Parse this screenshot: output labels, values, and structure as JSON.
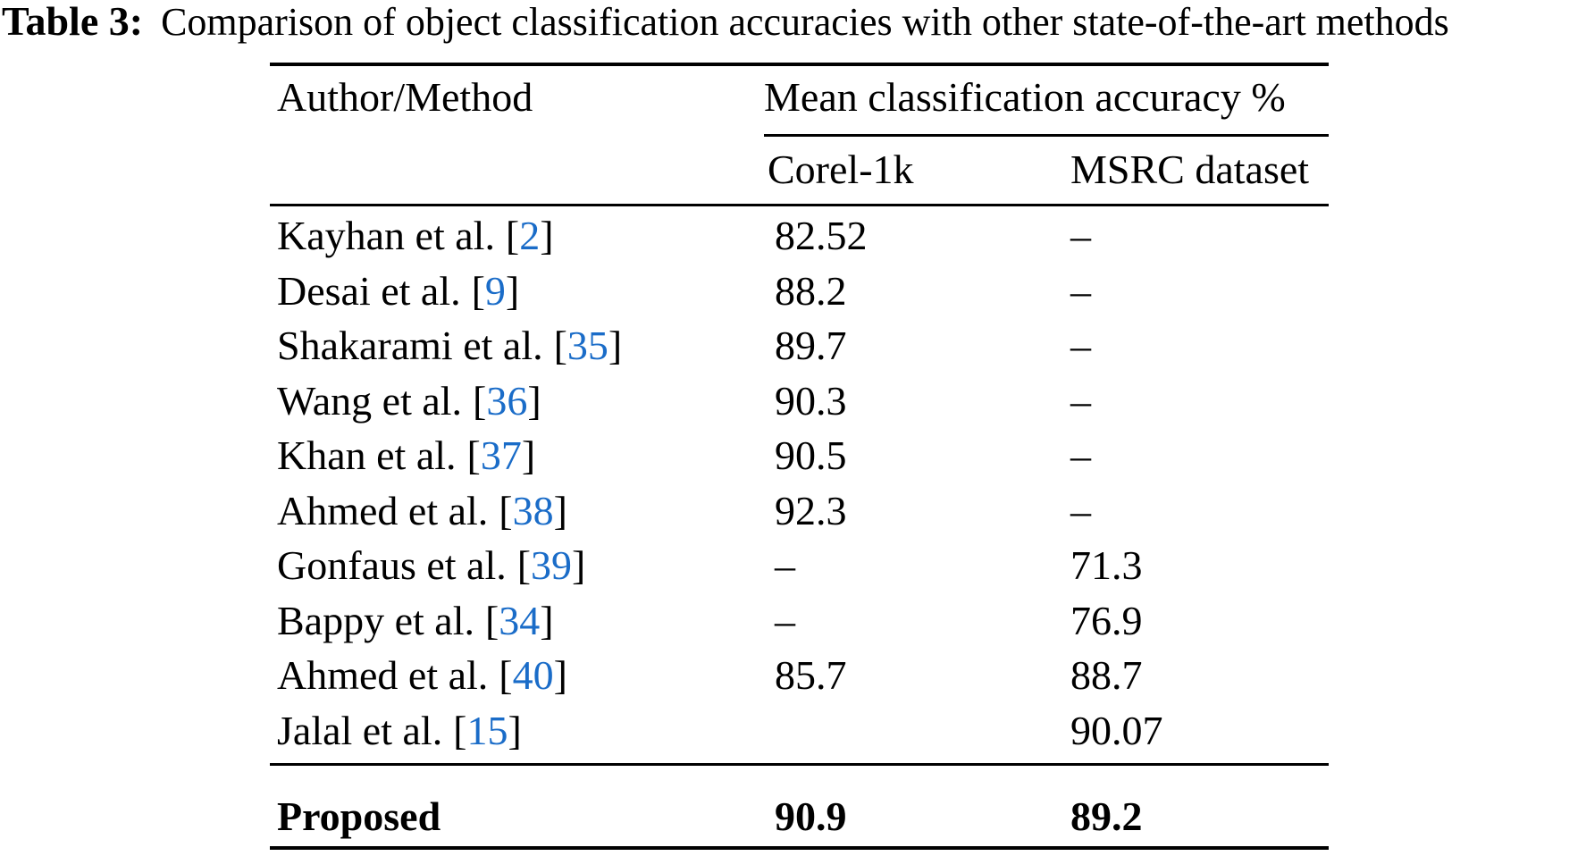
{
  "caption": {
    "label": "Table 3:",
    "text": "Comparison of object classification accuracies with other state-of-the-art methods"
  },
  "symbols": {
    "lbracket": "[",
    "rbracket": "]",
    "dash": "–"
  },
  "colors": {
    "link_blue": "#1a6cc8",
    "text": "#000000",
    "background": "#ffffff"
  },
  "table": {
    "header": {
      "author": "Author/Method",
      "group": "Mean classification accuracy %",
      "corel": "Corel-1k",
      "msrc": "MSRC dataset"
    },
    "rows": [
      {
        "author": "Kayhan et al.",
        "ref": "2",
        "corel": "82.52",
        "msrc": "–"
      },
      {
        "author": "Desai et al.",
        "ref": "9",
        "corel": "88.2",
        "msrc": "–"
      },
      {
        "author": "Shakarami et al.",
        "ref": "35",
        "corel": "89.7",
        "msrc": "–"
      },
      {
        "author": "Wang et al.",
        "ref": "36",
        "corel": "90.3",
        "msrc": "–"
      },
      {
        "author": "Khan et al.",
        "ref": "37",
        "corel": "90.5",
        "msrc": "–"
      },
      {
        "author": "Ahmed et al.",
        "ref": "38",
        "corel": "92.3",
        "msrc": "–"
      },
      {
        "author": "Gonfaus et al.",
        "ref": "39",
        "corel": "–",
        "msrc": "71.3"
      },
      {
        "author": "Bappy et al.",
        "ref": "34",
        "corel": "–",
        "msrc": "76.9"
      },
      {
        "author": "Ahmed et al.",
        "ref": "40",
        "corel": "85.7",
        "msrc": "88.7"
      },
      {
        "author": "Jalal et al.",
        "ref": "15",
        "corel": "",
        "msrc": "90.07"
      }
    ],
    "footer": {
      "author": "Proposed",
      "corel": "90.9",
      "msrc": "89.2"
    }
  }
}
